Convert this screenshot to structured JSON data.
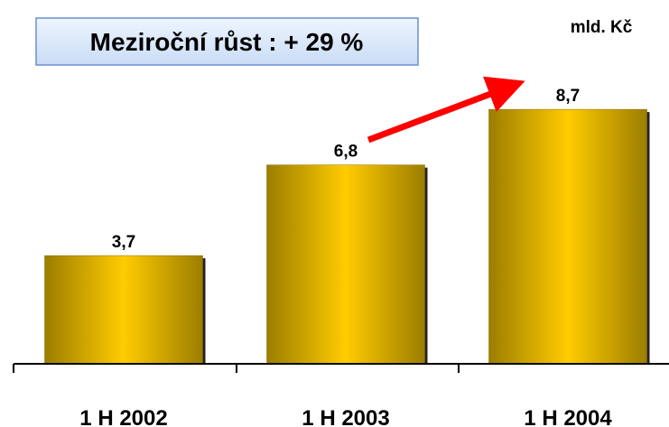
{
  "chart_data": {
    "type": "bar",
    "annotation": "Meziroční růst : + 29 %",
    "unit_label": "mld. Kč",
    "categories": [
      "1 H 2002",
      "1 H 2003",
      "1 H 2004"
    ],
    "values": [
      3.7,
      6.8,
      8.7
    ],
    "value_labels": [
      "3,7",
      "6,8",
      "8,7"
    ],
    "color": "#ffcc00"
  }
}
